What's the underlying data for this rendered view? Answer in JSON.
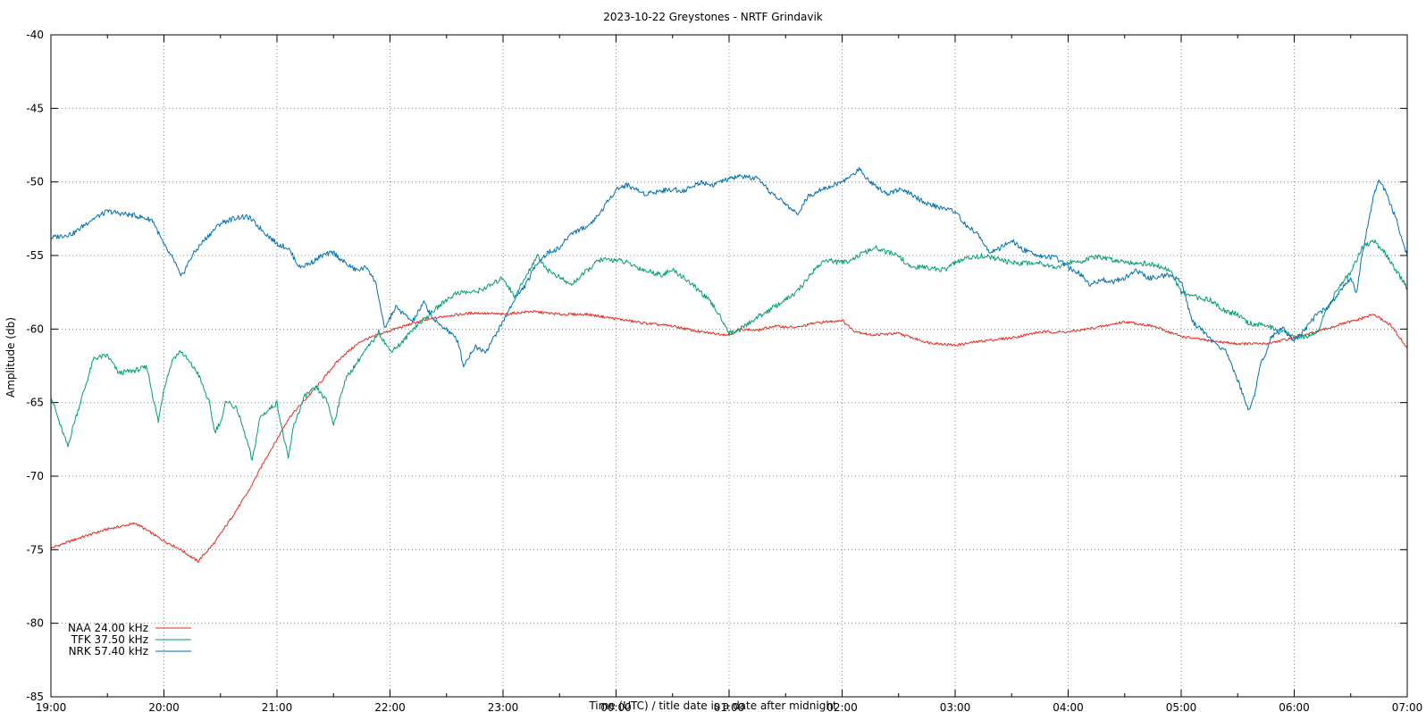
{
  "chart_data": {
    "type": "line",
    "title": "2023-10-22 Greystones - NRTF Grindavik",
    "xlabel": "Time (UTC) / title date is a date after midnight",
    "ylabel": "Amplitude (db)",
    "x_unit": "hours (UTC clock)",
    "xlim": [
      19,
      31
    ],
    "ylim": [
      -85,
      -40
    ],
    "x_ticks": [
      19,
      20,
      21,
      22,
      23,
      24,
      25,
      26,
      27,
      28,
      29,
      30,
      31
    ],
    "x_tick_labels": [
      "19:00",
      "20:00",
      "21:00",
      "22:00",
      "23:00",
      "00:00",
      "01:00",
      "02:00",
      "03:00",
      "04:00",
      "05:00",
      "06:00",
      "07:00"
    ],
    "y_ticks": [
      -85,
      -80,
      -75,
      -70,
      -65,
      -60,
      -55,
      -50,
      -45,
      -40
    ],
    "y_tick_labels": [
      "-85",
      "-80",
      "-75",
      "-70",
      "-65",
      "-60",
      "-55",
      "-50",
      "-45",
      "-40"
    ],
    "grid": true,
    "legend_position": "bottom-left",
    "series": [
      {
        "name": "NAA 24.00 kHz",
        "color": "#e8291c",
        "points": [
          [
            19.0,
            -74.9
          ],
          [
            19.25,
            -74.2
          ],
          [
            19.5,
            -73.6
          ],
          [
            19.75,
            -73.2
          ],
          [
            20.0,
            -74.4
          ],
          [
            20.15,
            -75.0
          ],
          [
            20.3,
            -75.8
          ],
          [
            20.45,
            -74.5
          ],
          [
            20.6,
            -72.8
          ],
          [
            20.75,
            -71.0
          ],
          [
            20.9,
            -68.8
          ],
          [
            21.0,
            -67.5
          ],
          [
            21.1,
            -66.1
          ],
          [
            21.25,
            -64.8
          ],
          [
            21.4,
            -63.5
          ],
          [
            21.5,
            -62.5
          ],
          [
            21.6,
            -61.7
          ],
          [
            21.75,
            -60.8
          ],
          [
            22.0,
            -60.1
          ],
          [
            22.25,
            -59.5
          ],
          [
            22.5,
            -59.1
          ],
          [
            22.75,
            -58.9
          ],
          [
            23.0,
            -59.0
          ],
          [
            23.25,
            -58.8
          ],
          [
            23.5,
            -59.0
          ],
          [
            23.75,
            -59.0
          ],
          [
            24.0,
            -59.3
          ],
          [
            24.25,
            -59.6
          ],
          [
            24.5,
            -59.8
          ],
          [
            24.75,
            -60.2
          ],
          [
            25.0,
            -60.4
          ],
          [
            25.1,
            -60.0
          ],
          [
            25.25,
            -60.1
          ],
          [
            25.4,
            -59.8
          ],
          [
            25.6,
            -59.9
          ],
          [
            25.75,
            -59.6
          ],
          [
            26.0,
            -59.4
          ],
          [
            26.1,
            -60.1
          ],
          [
            26.25,
            -60.4
          ],
          [
            26.5,
            -60.3
          ],
          [
            26.75,
            -60.9
          ],
          [
            27.0,
            -61.1
          ],
          [
            27.25,
            -60.8
          ],
          [
            27.5,
            -60.6
          ],
          [
            27.75,
            -60.2
          ],
          [
            28.0,
            -60.2
          ],
          [
            28.25,
            -59.9
          ],
          [
            28.5,
            -59.5
          ],
          [
            28.75,
            -59.8
          ],
          [
            29.0,
            -60.5
          ],
          [
            29.25,
            -60.8
          ],
          [
            29.5,
            -61.0
          ],
          [
            29.75,
            -61.0
          ],
          [
            30.0,
            -60.6
          ],
          [
            30.2,
            -60.2
          ],
          [
            30.4,
            -59.7
          ],
          [
            30.55,
            -59.4
          ],
          [
            30.7,
            -59.0
          ],
          [
            30.85,
            -59.7
          ],
          [
            31.0,
            -61.3
          ]
        ]
      },
      {
        "name": "TFK 37.50 kHz",
        "color": "#009e73",
        "points": [
          [
            19.0,
            -64.5
          ],
          [
            19.08,
            -66.5
          ],
          [
            19.15,
            -68.0
          ],
          [
            19.2,
            -66.5
          ],
          [
            19.3,
            -64.0
          ],
          [
            19.38,
            -62.0
          ],
          [
            19.5,
            -61.8
          ],
          [
            19.6,
            -63.0
          ],
          [
            19.75,
            -62.8
          ],
          [
            19.85,
            -62.6
          ],
          [
            19.9,
            -64.5
          ],
          [
            19.95,
            -66.3
          ],
          [
            20.0,
            -64.0
          ],
          [
            20.08,
            -62.0
          ],
          [
            20.15,
            -61.5
          ],
          [
            20.3,
            -63.0
          ],
          [
            20.4,
            -65.0
          ],
          [
            20.45,
            -67.0
          ],
          [
            20.52,
            -66.0
          ],
          [
            20.55,
            -64.8
          ],
          [
            20.65,
            -65.5
          ],
          [
            20.75,
            -68.0
          ],
          [
            20.78,
            -69.0
          ],
          [
            20.85,
            -66.0
          ],
          [
            21.0,
            -65.0
          ],
          [
            21.05,
            -67.0
          ],
          [
            21.1,
            -68.8
          ],
          [
            21.15,
            -66.5
          ],
          [
            21.25,
            -64.5
          ],
          [
            21.35,
            -64.0
          ],
          [
            21.45,
            -65.0
          ],
          [
            21.5,
            -66.5
          ],
          [
            21.6,
            -63.5
          ],
          [
            21.75,
            -61.8
          ],
          [
            21.85,
            -60.8
          ],
          [
            21.9,
            -60.2
          ],
          [
            22.0,
            -61.5
          ],
          [
            22.1,
            -61.0
          ],
          [
            22.2,
            -60.0
          ],
          [
            22.35,
            -59.0
          ],
          [
            22.5,
            -58.0
          ],
          [
            22.6,
            -57.5
          ],
          [
            22.75,
            -57.5
          ],
          [
            22.9,
            -57.0
          ],
          [
            23.0,
            -56.5
          ],
          [
            23.1,
            -57.8
          ],
          [
            23.2,
            -56.5
          ],
          [
            23.3,
            -55.0
          ],
          [
            23.4,
            -56.0
          ],
          [
            23.5,
            -56.5
          ],
          [
            23.6,
            -57.0
          ],
          [
            23.75,
            -56.0
          ],
          [
            23.85,
            -55.3
          ],
          [
            24.0,
            -55.3
          ],
          [
            24.1,
            -55.5
          ],
          [
            24.25,
            -56.0
          ],
          [
            24.4,
            -56.3
          ],
          [
            24.5,
            -56.0
          ],
          [
            24.6,
            -56.5
          ],
          [
            24.75,
            -57.5
          ],
          [
            24.85,
            -58.3
          ],
          [
            24.95,
            -59.5
          ],
          [
            25.0,
            -60.3
          ],
          [
            25.1,
            -60.0
          ],
          [
            25.25,
            -59.2
          ],
          [
            25.4,
            -58.5
          ],
          [
            25.5,
            -58.0
          ],
          [
            25.6,
            -57.5
          ],
          [
            25.75,
            -56.0
          ],
          [
            25.85,
            -55.3
          ],
          [
            26.0,
            -55.5
          ],
          [
            26.1,
            -55.2
          ],
          [
            26.2,
            -54.8
          ],
          [
            26.3,
            -54.5
          ],
          [
            26.4,
            -54.8
          ],
          [
            26.5,
            -55.0
          ],
          [
            26.6,
            -55.8
          ],
          [
            26.75,
            -55.8
          ],
          [
            26.9,
            -56.0
          ],
          [
            27.0,
            -55.5
          ],
          [
            27.1,
            -55.2
          ],
          [
            27.25,
            -55.0
          ],
          [
            27.4,
            -55.3
          ],
          [
            27.5,
            -55.5
          ],
          [
            27.6,
            -55.5
          ],
          [
            27.75,
            -55.5
          ],
          [
            27.9,
            -55.8
          ],
          [
            28.0,
            -55.5
          ],
          [
            28.1,
            -55.4
          ],
          [
            28.25,
            -55.1
          ],
          [
            28.4,
            -55.3
          ],
          [
            28.5,
            -55.4
          ],
          [
            28.6,
            -55.5
          ],
          [
            28.75,
            -55.6
          ],
          [
            28.9,
            -56.0
          ],
          [
            29.0,
            -57.5
          ],
          [
            29.1,
            -57.8
          ],
          [
            29.25,
            -58.0
          ],
          [
            29.4,
            -58.8
          ],
          [
            29.5,
            -59.0
          ],
          [
            29.6,
            -59.6
          ],
          [
            29.75,
            -59.8
          ],
          [
            29.85,
            -60.0
          ],
          [
            30.0,
            -60.5
          ],
          [
            30.1,
            -60.5
          ],
          [
            30.2,
            -60.2
          ],
          [
            30.3,
            -58.5
          ],
          [
            30.4,
            -57.0
          ],
          [
            30.5,
            -56.2
          ],
          [
            30.6,
            -54.5
          ],
          [
            30.7,
            -54.0
          ],
          [
            30.8,
            -54.8
          ],
          [
            30.9,
            -56.0
          ],
          [
            31.0,
            -57.2
          ]
        ]
      },
      {
        "name": "NRK 57.40 kHz",
        "color": "#0072b2",
        "points": [
          [
            19.0,
            -53.8
          ],
          [
            19.2,
            -53.5
          ],
          [
            19.35,
            -52.6
          ],
          [
            19.5,
            -52.0
          ],
          [
            19.75,
            -52.3
          ],
          [
            19.9,
            -52.6
          ],
          [
            20.0,
            -54.3
          ],
          [
            20.1,
            -55.5
          ],
          [
            20.15,
            -56.5
          ],
          [
            20.25,
            -55.0
          ],
          [
            20.35,
            -54.0
          ],
          [
            20.5,
            -52.8
          ],
          [
            20.65,
            -52.4
          ],
          [
            20.75,
            -52.4
          ],
          [
            20.9,
            -53.5
          ],
          [
            21.0,
            -54.2
          ],
          [
            21.1,
            -54.5
          ],
          [
            21.2,
            -55.8
          ],
          [
            21.3,
            -55.5
          ],
          [
            21.4,
            -55.0
          ],
          [
            21.5,
            -54.8
          ],
          [
            21.6,
            -55.5
          ],
          [
            21.7,
            -56.0
          ],
          [
            21.8,
            -55.8
          ],
          [
            21.88,
            -57.0
          ],
          [
            21.95,
            -60.0
          ],
          [
            22.05,
            -58.5
          ],
          [
            22.2,
            -59.5
          ],
          [
            22.3,
            -58.2
          ],
          [
            22.4,
            -59.5
          ],
          [
            22.5,
            -60.0
          ],
          [
            22.6,
            -60.8
          ],
          [
            22.65,
            -62.5
          ],
          [
            22.75,
            -61.2
          ],
          [
            22.85,
            -61.5
          ],
          [
            23.0,
            -59.5
          ],
          [
            23.1,
            -58.0
          ],
          [
            23.2,
            -57.0
          ],
          [
            23.3,
            -55.5
          ],
          [
            23.4,
            -54.8
          ],
          [
            23.5,
            -54.5
          ],
          [
            23.6,
            -53.5
          ],
          [
            23.75,
            -53.0
          ],
          [
            23.85,
            -52.2
          ],
          [
            24.0,
            -50.5
          ],
          [
            24.1,
            -50.2
          ],
          [
            24.25,
            -50.8
          ],
          [
            24.4,
            -50.6
          ],
          [
            24.5,
            -50.5
          ],
          [
            24.6,
            -50.6
          ],
          [
            24.75,
            -50.0
          ],
          [
            24.85,
            -50.2
          ],
          [
            25.0,
            -49.8
          ],
          [
            25.1,
            -49.6
          ],
          [
            25.25,
            -49.8
          ],
          [
            25.35,
            -50.6
          ],
          [
            25.5,
            -51.5
          ],
          [
            25.6,
            -52.2
          ],
          [
            25.7,
            -51.0
          ],
          [
            25.8,
            -50.5
          ],
          [
            25.9,
            -50.3
          ],
          [
            26.0,
            -50.0
          ],
          [
            26.1,
            -49.5
          ],
          [
            26.15,
            -49.1
          ],
          [
            26.25,
            -50.0
          ],
          [
            26.4,
            -50.8
          ],
          [
            26.5,
            -50.5
          ],
          [
            26.6,
            -50.8
          ],
          [
            26.75,
            -51.5
          ],
          [
            26.9,
            -51.8
          ],
          [
            27.0,
            -52.0
          ],
          [
            27.1,
            -53.0
          ],
          [
            27.2,
            -53.5
          ],
          [
            27.3,
            -54.8
          ],
          [
            27.4,
            -54.5
          ],
          [
            27.5,
            -54.0
          ],
          [
            27.6,
            -54.6
          ],
          [
            27.75,
            -55.0
          ],
          [
            27.9,
            -55.2
          ],
          [
            28.0,
            -55.8
          ],
          [
            28.1,
            -56.2
          ],
          [
            28.2,
            -57.0
          ],
          [
            28.3,
            -56.6
          ],
          [
            28.4,
            -56.8
          ],
          [
            28.5,
            -56.5
          ],
          [
            28.6,
            -56.0
          ],
          [
            28.7,
            -56.5
          ],
          [
            28.75,
            -56.5
          ],
          [
            28.9,
            -56.3
          ],
          [
            29.0,
            -56.8
          ],
          [
            29.1,
            -59.5
          ],
          [
            29.2,
            -60.2
          ],
          [
            29.3,
            -61.0
          ],
          [
            29.4,
            -61.5
          ],
          [
            29.5,
            -63.5
          ],
          [
            29.6,
            -65.5
          ],
          [
            29.65,
            -64.5
          ],
          [
            29.7,
            -62.5
          ],
          [
            29.8,
            -60.5
          ],
          [
            29.9,
            -60.0
          ],
          [
            30.0,
            -60.8
          ],
          [
            30.1,
            -60.0
          ],
          [
            30.2,
            -59.0
          ],
          [
            30.3,
            -58.5
          ],
          [
            30.4,
            -57.5
          ],
          [
            30.5,
            -56.5
          ],
          [
            30.55,
            -57.5
          ],
          [
            30.6,
            -55.0
          ],
          [
            30.65,
            -53.0
          ],
          [
            30.7,
            -51.0
          ],
          [
            30.75,
            -50.0
          ],
          [
            30.8,
            -50.5
          ],
          [
            30.9,
            -52.5
          ],
          [
            31.0,
            -55.0
          ]
        ]
      }
    ]
  }
}
